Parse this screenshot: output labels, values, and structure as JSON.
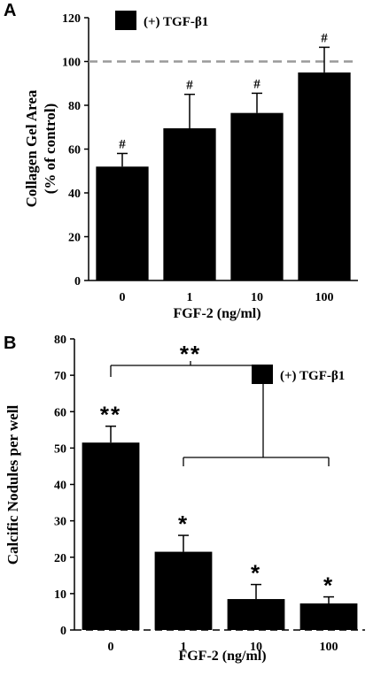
{
  "chart_data": [
    {
      "panel_label": "A",
      "type": "bar",
      "categories": [
        "0",
        "1",
        "10",
        "100"
      ],
      "values": [
        52,
        69.5,
        76.5,
        95
      ],
      "errors": [
        6,
        15.5,
        9,
        11.5
      ],
      "annotations": [
        "#",
        "#",
        "#",
        "#"
      ],
      "reference_line": 100,
      "xlabel": "FGF-2 (ng/ml)",
      "ylabel_lines": [
        "Collagen Gel Area",
        "(% of control)"
      ],
      "ylim": [
        0,
        120
      ],
      "yticks": [
        0,
        20,
        40,
        60,
        80,
        100,
        120
      ],
      "legend": "(+) TGF-β1",
      "legend_position": "top-left",
      "bar_color": "#000000"
    },
    {
      "panel_label": "B",
      "type": "bar",
      "categories": [
        "0",
        "1",
        "10",
        "100"
      ],
      "values": [
        51.5,
        21.5,
        8.5,
        7.3
      ],
      "errors": [
        4.5,
        4.5,
        4,
        1.8
      ],
      "annotations": [
        "**",
        "*",
        "*",
        "*"
      ],
      "bracket_label": "**",
      "xlabel": "FGF-2 (ng/ml)",
      "ylabel_lines": [
        "Calcific Nodules per well"
      ],
      "ylim": [
        0,
        80
      ],
      "yticks": [
        0,
        10,
        20,
        30,
        40,
        50,
        60,
        70,
        80
      ],
      "legend": "(+) TGF-β1",
      "legend_position": "top-right",
      "bar_color": "#000000"
    }
  ]
}
